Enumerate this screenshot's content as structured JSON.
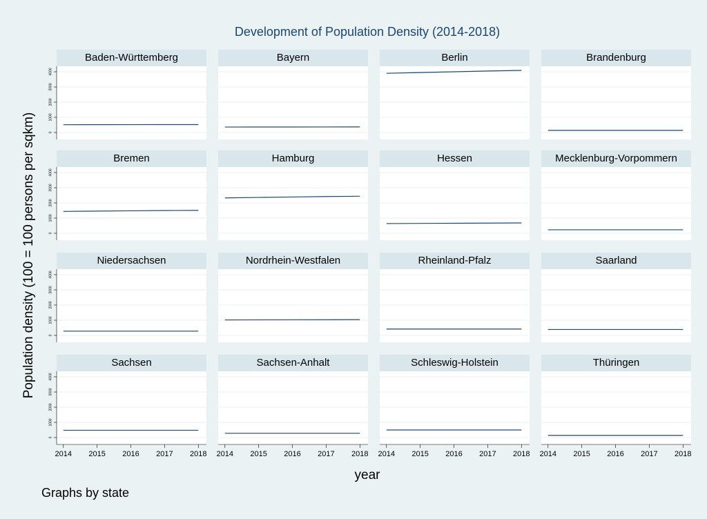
{
  "chart_data": {
    "type": "line",
    "title": "Development of Population Density (2014-2018)",
    "y_label": "Population density (100 = 100 persons per sqkm)",
    "x_label": "year",
    "note": "Graphs by state",
    "color": "#1a476f",
    "x": [
      2014,
      2015,
      2016,
      2017,
      2018
    ],
    "xlim": [
      2013.8,
      2018.24
    ],
    "xticks": [
      2014,
      2015,
      2016,
      2017,
      2018
    ],
    "ylim": [
      -455,
      4364
    ],
    "yticks": [
      0,
      1000,
      2000,
      3000,
      4000
    ],
    "grid": true,
    "panels": [
      {
        "name": "Baden-Württemberg",
        "values": [
          515,
          518,
          520,
          522,
          524
        ]
      },
      {
        "name": "Bayern",
        "values": [
          360,
          362,
          364,
          366,
          368
        ]
      },
      {
        "name": "Berlin",
        "values": [
          3900,
          3950,
          4000,
          4050,
          4090
        ]
      },
      {
        "name": "Brandenburg",
        "values": [
          140,
          140,
          140,
          140,
          140
        ]
      },
      {
        "name": "Bremen",
        "values": [
          1440,
          1460,
          1480,
          1500,
          1510
        ]
      },
      {
        "name": "Hamburg",
        "values": [
          2330,
          2360,
          2390,
          2420,
          2440
        ]
      },
      {
        "name": "Hessen",
        "values": [
          640,
          650,
          660,
          670,
          680
        ]
      },
      {
        "name": "Mecklenburg-Vorpommern",
        "values": [
          230,
          230,
          230,
          230,
          230
        ]
      },
      {
        "name": "Niedersachsen",
        "values": [
          280,
          280,
          280,
          280,
          280
        ]
      },
      {
        "name": "Nordrhein-Westfalen",
        "values": [
          1020,
          1025,
          1030,
          1035,
          1040
        ]
      },
      {
        "name": "Rheinland-Pfalz",
        "values": [
          420,
          420,
          420,
          420,
          420
        ]
      },
      {
        "name": "Saarland",
        "values": [
          390,
          390,
          390,
          390,
          390
        ]
      },
      {
        "name": "Sachsen",
        "values": [
          480,
          480,
          480,
          480,
          480
        ]
      },
      {
        "name": "Sachsen-Anhalt",
        "values": [
          280,
          280,
          280,
          280,
          280
        ]
      },
      {
        "name": "Schleswig-Holstein",
        "values": [
          500,
          500,
          500,
          500,
          500
        ]
      },
      {
        "name": "Thüringen",
        "values": [
          140,
          140,
          140,
          140,
          140
        ]
      }
    ]
  }
}
